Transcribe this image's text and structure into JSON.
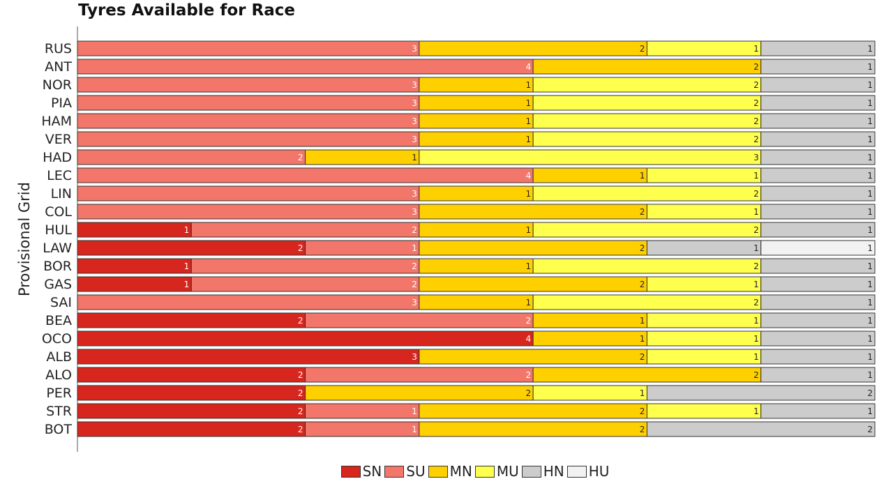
{
  "chart_data": {
    "type": "bar",
    "orientation": "horizontal",
    "stacked": true,
    "title": "Tyres Available for Race",
    "ylabel": "Provisional Grid",
    "xlabel": "",
    "categories": [
      "RUS",
      "ANT",
      "NOR",
      "PIA",
      "HAM",
      "VER",
      "HAD",
      "LEC",
      "LIN",
      "COL",
      "HUL",
      "LAW",
      "BOR",
      "GAS",
      "SAI",
      "BEA",
      "OCO",
      "ALB",
      "ALO",
      "PER",
      "STR",
      "BOT"
    ],
    "series": [
      {
        "name": "SN",
        "color": "#d7261e",
        "values": [
          0,
          0,
          0,
          0,
          0,
          0,
          0,
          0,
          0,
          0,
          1,
          2,
          1,
          1,
          0,
          2,
          4,
          3,
          2,
          2,
          2,
          2
        ]
      },
      {
        "name": "SU",
        "color": "#f2766a",
        "values": [
          3,
          4,
          3,
          3,
          3,
          3,
          2,
          4,
          3,
          3,
          2,
          1,
          2,
          2,
          3,
          2,
          0,
          0,
          2,
          0,
          1,
          1
        ]
      },
      {
        "name": "MN",
        "color": "#ffd000",
        "values": [
          2,
          2,
          1,
          1,
          1,
          1,
          1,
          1,
          1,
          2,
          1,
          2,
          1,
          2,
          1,
          1,
          1,
          2,
          2,
          2,
          2,
          2
        ]
      },
      {
        "name": "MU",
        "color": "#ffff4d",
        "values": [
          1,
          0,
          2,
          2,
          2,
          2,
          3,
          1,
          2,
          1,
          2,
          0,
          2,
          1,
          2,
          1,
          1,
          1,
          0,
          1,
          1,
          0
        ]
      },
      {
        "name": "HN",
        "color": "#cccccc",
        "values": [
          1,
          1,
          1,
          1,
          1,
          1,
          1,
          1,
          1,
          1,
          1,
          1,
          1,
          1,
          1,
          1,
          1,
          1,
          1,
          2,
          1,
          2
        ]
      },
      {
        "name": "HU",
        "color": "#f2f2f2",
        "values": [
          0,
          0,
          0,
          0,
          0,
          0,
          0,
          0,
          0,
          0,
          0,
          1,
          0,
          0,
          0,
          0,
          0,
          0,
          0,
          0,
          0,
          0
        ]
      }
    ],
    "xlim": [
      0,
      7
    ],
    "grid": false,
    "legend_position": "bottom-center"
  }
}
